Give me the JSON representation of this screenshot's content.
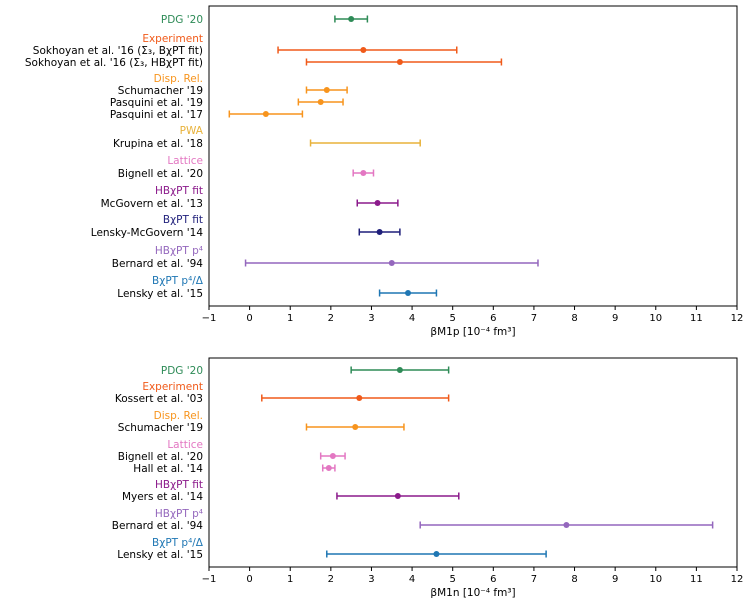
{
  "colors": {
    "pdg": "#2e8b57",
    "experiment": "#f05a1a",
    "disp": "#f7941d",
    "pwa": "#e8b23a",
    "lattice": "#e377c2",
    "hbfit": "#8b1a8b",
    "bfit": "#1f1f7a",
    "hbp4": "#9467bd",
    "bdelta": "#1f77b4"
  },
  "chart_data": [
    {
      "type": "errorbar",
      "id": "proton",
      "xlabel": "βM1p [10⁻⁴ fm³]",
      "xlim": [
        -1,
        12
      ],
      "xticks": [
        -1,
        0,
        1,
        2,
        3,
        4,
        5,
        6,
        7,
        8,
        9,
        10,
        11,
        12
      ],
      "groups": [
        {
          "label": "PDG '20",
          "color": "pdg",
          "entries": [
            {
              "label": "",
              "value": 2.5,
              "low": 2.1,
              "high": 2.9
            }
          ]
        },
        {
          "label": "Experiment",
          "color": "experiment",
          "entries": [
            {
              "label": "Sokhoyan et al. '16 (Σ₃, BχPT fit)",
              "value": 2.8,
              "low": 0.7,
              "high": 5.1
            },
            {
              "label": "Sokhoyan et al. '16 (Σ₃, HBχPT fit)",
              "value": 3.7,
              "low": 1.4,
              "high": 6.2
            }
          ]
        },
        {
          "label": "Disp. Rel.",
          "color": "disp",
          "entries": [
            {
              "label": "Schumacher '19",
              "value": 1.9,
              "low": 1.4,
              "high": 2.4
            },
            {
              "label": "Pasquini et al. '19",
              "value": 1.75,
              "low": 1.2,
              "high": 2.3
            },
            {
              "label": "Pasquini et al. '17",
              "value": 0.4,
              "low": -0.5,
              "high": 1.3
            }
          ]
        },
        {
          "label": "PWA",
          "color": "pwa",
          "entries": [
            {
              "label": "Krupina et al. '18",
              "value": null,
              "low": 1.5,
              "high": 4.2
            }
          ]
        },
        {
          "label": "Lattice",
          "color": "lattice",
          "entries": [
            {
              "label": "Bignell et al. '20",
              "value": 2.8,
              "low": 2.55,
              "high": 3.05
            }
          ]
        },
        {
          "label": "HBχPT fit",
          "color": "hbfit",
          "entries": [
            {
              "label": "McGovern et al. '13",
              "value": 3.15,
              "low": 2.65,
              "high": 3.65
            }
          ]
        },
        {
          "label": "BχPT fit",
          "color": "bfit",
          "entries": [
            {
              "label": "Lensky-McGovern '14",
              "value": 3.2,
              "low": 2.7,
              "high": 3.7
            }
          ]
        },
        {
          "label": "HBχPT p⁴",
          "color": "hbp4",
          "entries": [
            {
              "label": "Bernard et al. '94",
              "value": 3.5,
              "low": -0.1,
              "high": 7.1
            }
          ]
        },
        {
          "label": "BχPT p⁴/Δ",
          "color": "bdelta",
          "entries": [
            {
              "label": "Lensky et al. '15",
              "value": 3.9,
              "low": 3.2,
              "high": 4.6
            }
          ]
        }
      ]
    },
    {
      "type": "errorbar",
      "id": "neutron",
      "xlabel": "βM1n [10⁻⁴ fm³]",
      "xlim": [
        -1,
        12
      ],
      "xticks": [
        -1,
        0,
        1,
        2,
        3,
        4,
        5,
        6,
        7,
        8,
        9,
        10,
        11,
        12
      ],
      "groups": [
        {
          "label": "PDG '20",
          "color": "pdg",
          "entries": [
            {
              "label": "",
              "value": 3.7,
              "low": 2.5,
              "high": 4.9
            }
          ]
        },
        {
          "label": "Experiment",
          "color": "experiment",
          "entries": [
            {
              "label": "Kossert et al. '03",
              "value": 2.7,
              "low": 0.3,
              "high": 4.9
            }
          ]
        },
        {
          "label": "Disp. Rel.",
          "color": "disp",
          "entries": [
            {
              "label": "Schumacher '19",
              "value": 2.6,
              "low": 1.4,
              "high": 3.8
            }
          ]
        },
        {
          "label": "Lattice",
          "color": "lattice",
          "entries": [
            {
              "label": "Bignell et al. '20",
              "value": 2.05,
              "low": 1.75,
              "high": 2.35
            },
            {
              "label": "Hall et al. '14",
              "value": 1.95,
              "low": 1.8,
              "high": 2.1
            }
          ]
        },
        {
          "label": "HBχPT fit",
          "color": "hbfit",
          "entries": [
            {
              "label": "Myers et al. '14",
              "value": 3.65,
              "low": 2.15,
              "high": 5.15
            }
          ]
        },
        {
          "label": "HBχPT p⁴",
          "color": "hbp4",
          "entries": [
            {
              "label": "Bernard et al. '94",
              "value": 7.8,
              "low": 4.2,
              "high": 11.4
            }
          ]
        },
        {
          "label": "BχPT p⁴/Δ",
          "color": "bdelta",
          "entries": [
            {
              "label": "Lensky et al. '15",
              "value": 4.6,
              "low": 1.9,
              "high": 7.3
            }
          ]
        }
      ]
    }
  ]
}
